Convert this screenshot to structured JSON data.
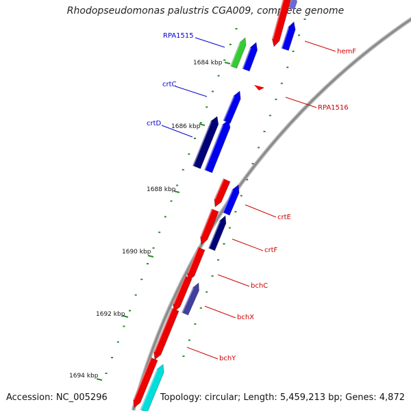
{
  "title": "Rhodopseudomonas palustris CGA009, complete genome",
  "footer": {
    "accession": "Accession: NC_005296",
    "summary": "Topology: circular; Length: 5,459,213 bp; Genes: 4,872"
  },
  "colors": {
    "forward_gene": "#0000ee",
    "reverse_gene": "#ee0000",
    "forward_label": "#0000cc",
    "reverse_label": "#cc0000",
    "tick": "#2a8a2a",
    "backbone": "#8c8c8c"
  },
  "scale": {
    "ticks": [
      {
        "label": "1684 kbp"
      },
      {
        "label": "1686 kbp"
      },
      {
        "label": "1688 kbp"
      },
      {
        "label": "1690 kbp"
      },
      {
        "label": "1692 kbp"
      },
      {
        "label": "1694 kbp"
      }
    ]
  },
  "forward_labels": [
    {
      "name": "RPA1515"
    },
    {
      "name": "crtC"
    },
    {
      "name": "crtD"
    }
  ],
  "reverse_labels": [
    {
      "name": "hemF"
    },
    {
      "name": "RPA1516"
    },
    {
      "name": "crtE"
    },
    {
      "name": "crtF"
    },
    {
      "name": "bchC"
    },
    {
      "name": "bchX"
    },
    {
      "name": "bchY"
    }
  ]
}
